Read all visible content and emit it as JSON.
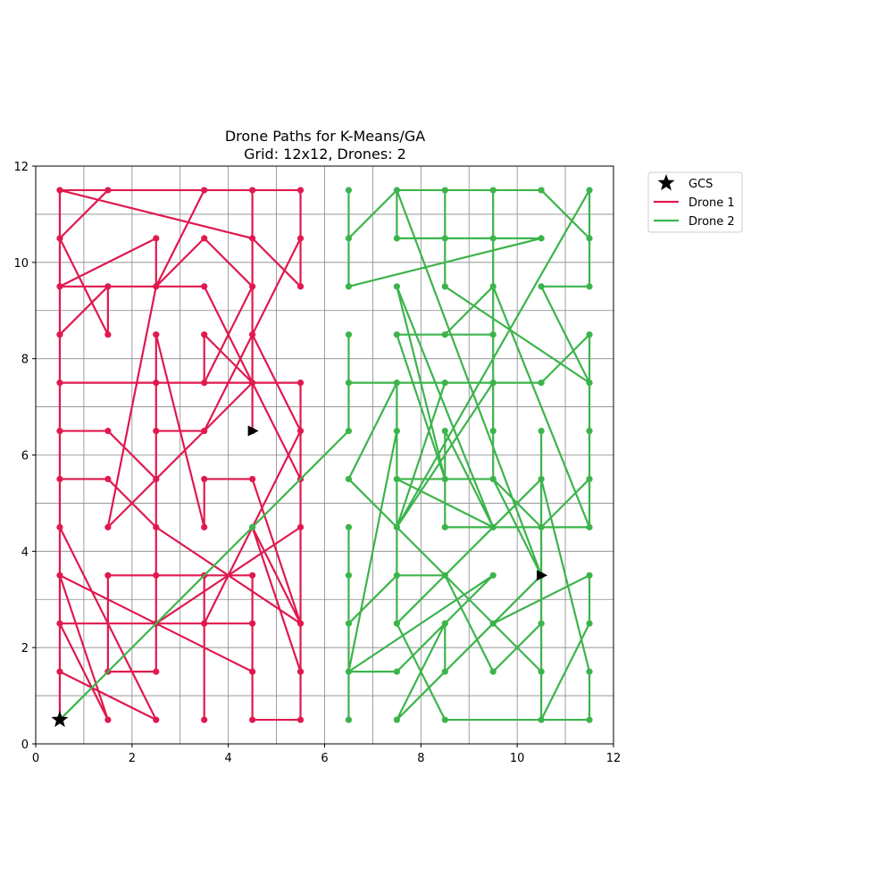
{
  "chart_data": {
    "type": "line",
    "title": "Drone Paths for K-Means/GA",
    "subtitle": "Grid: 12x12, Drones: 2",
    "xlabel": "",
    "ylabel": "",
    "xlim": [
      0,
      12
    ],
    "ylim": [
      0,
      12
    ],
    "xticks": [
      0,
      2,
      4,
      6,
      8,
      10,
      12
    ],
    "yticks": [
      0,
      2,
      4,
      6,
      8,
      10,
      12
    ],
    "grid": true,
    "minor_grid_step": 1,
    "legend_position": "outside upper-right",
    "gcs": {
      "label": "GCS",
      "x": 0.5,
      "y": 0.5,
      "marker": "star",
      "color": "#000000"
    },
    "series": [
      {
        "name": "Drone 1",
        "color": "#e0194f",
        "end_marker": {
          "x": 4.5,
          "y": 6.5,
          "shape": "triangle-right",
          "color": "#000000"
        },
        "path": [
          [
            0.5,
            0.5
          ],
          [
            0.5,
            2.5
          ],
          [
            1.5,
            0.5
          ],
          [
            0.5,
            3.5
          ],
          [
            4.5,
            1.5
          ],
          [
            4.5,
            3.5
          ],
          [
            1.5,
            3.5
          ],
          [
            1.5,
            1.5
          ],
          [
            2.5,
            1.5
          ],
          [
            2.5,
            6.5
          ],
          [
            3.5,
            6.5
          ],
          [
            4.5,
            8.5
          ],
          [
            4.5,
            11.5
          ],
          [
            3.5,
            11.5
          ],
          [
            2.5,
            9.5
          ],
          [
            2.5,
            10.5
          ],
          [
            0.5,
            9.5
          ],
          [
            3.5,
            9.5
          ],
          [
            5.5,
            5.5
          ],
          [
            5.5,
            1.5
          ],
          [
            4.5,
            4.5
          ],
          [
            5.5,
            2.5
          ],
          [
            5.5,
            4.5
          ],
          [
            2.5,
            2.5
          ],
          [
            0.5,
            2.5
          ],
          [
            4.5,
            2.5
          ],
          [
            4.5,
            0.5
          ],
          [
            5.5,
            0.5
          ],
          [
            5.5,
            7.5
          ],
          [
            0.5,
            7.5
          ],
          [
            0.5,
            11.5
          ],
          [
            5.5,
            11.5
          ],
          [
            5.5,
            9.5
          ],
          [
            4.5,
            10.5
          ],
          [
            0.5,
            11.5
          ],
          [
            0.5,
            4.5
          ],
          [
            2.5,
            0.5
          ],
          [
            0.5,
            1.5
          ],
          [
            0.5,
            6.5
          ],
          [
            1.5,
            6.5
          ],
          [
            2.5,
            5.5
          ],
          [
            2.5,
            8.5
          ],
          [
            3.5,
            4.5
          ],
          [
            3.5,
            5.5
          ],
          [
            4.5,
            5.5
          ],
          [
            5.5,
            2.5
          ],
          [
            2.5,
            4.5
          ],
          [
            2.5,
            3.5
          ],
          [
            3.5,
            3.5
          ],
          [
            3.5,
            0.5
          ],
          [
            3.5,
            2.5
          ],
          [
            5.5,
            6.5
          ],
          [
            4.5,
            8.5
          ],
          [
            5.5,
            10.5
          ],
          [
            5.5,
            11.5
          ],
          [
            1.5,
            11.5
          ],
          [
            0.5,
            10.5
          ],
          [
            1.5,
            8.5
          ],
          [
            1.5,
            9.5
          ],
          [
            0.5,
            8.5
          ],
          [
            0.5,
            5.5
          ],
          [
            1.5,
            5.5
          ],
          [
            2.5,
            4.5
          ],
          [
            2.5,
            7.5
          ],
          [
            4.5,
            7.5
          ],
          [
            3.5,
            8.5
          ],
          [
            3.5,
            7.5
          ],
          [
            4.5,
            9.5
          ],
          [
            4.5,
            7.5
          ],
          [
            1.5,
            4.5
          ],
          [
            2.5,
            9.5
          ],
          [
            3.5,
            10.5
          ],
          [
            4.5,
            9.5
          ],
          [
            4.5,
            6.5
          ]
        ]
      },
      {
        "name": "Drone 2",
        "color": "#3cb44b",
        "end_marker": {
          "x": 10.5,
          "y": 3.5,
          "shape": "triangle-right",
          "color": "#000000"
        },
        "path": [
          [
            0.5,
            0.5
          ],
          [
            4.5,
            4.5
          ],
          [
            6.5,
            6.5
          ],
          [
            6.5,
            8.5
          ],
          [
            6.5,
            7.5
          ],
          [
            10.5,
            7.5
          ],
          [
            11.5,
            8.5
          ],
          [
            11.5,
            4.5
          ],
          [
            9.5,
            9.5
          ],
          [
            8.5,
            8.5
          ],
          [
            9.5,
            8.5
          ],
          [
            7.5,
            8.5
          ],
          [
            8.5,
            5.5
          ],
          [
            7.5,
            9.5
          ],
          [
            9.5,
            4.5
          ],
          [
            11.5,
            4.5
          ],
          [
            11.5,
            6.5
          ],
          [
            11.5,
            5.5
          ],
          [
            10.5,
            4.5
          ],
          [
            8.5,
            4.5
          ],
          [
            8.5,
            6.5
          ],
          [
            9.5,
            4.5
          ],
          [
            7.5,
            5.5
          ],
          [
            9.5,
            5.5
          ],
          [
            10.5,
            4.5
          ],
          [
            10.5,
            6.5
          ],
          [
            10.5,
            0.5
          ],
          [
            11.5,
            2.5
          ],
          [
            11.5,
            3.5
          ],
          [
            9.5,
            2.5
          ],
          [
            8.5,
            1.5
          ],
          [
            8.5,
            2.5
          ],
          [
            9.5,
            3.5
          ],
          [
            6.5,
            1.5
          ],
          [
            6.5,
            0.5
          ],
          [
            6.5,
            4.5
          ],
          [
            6.5,
            3.5
          ],
          [
            6.5,
            2.5
          ],
          [
            7.5,
            3.5
          ],
          [
            8.5,
            3.5
          ],
          [
            9.5,
            1.5
          ],
          [
            10.5,
            2.5
          ],
          [
            10.5,
            1.5
          ],
          [
            7.5,
            4.5
          ],
          [
            6.5,
            5.5
          ],
          [
            7.5,
            7.5
          ],
          [
            7.5,
            4.5
          ],
          [
            9.5,
            7.5
          ],
          [
            9.5,
            6.5
          ],
          [
            9.5,
            10.5
          ],
          [
            8.5,
            10.5
          ],
          [
            8.5,
            11.5
          ],
          [
            8.5,
            9.5
          ],
          [
            11.5,
            7.5
          ],
          [
            10.5,
            9.5
          ],
          [
            11.5,
            9.5
          ],
          [
            11.5,
            11.5
          ],
          [
            7.5,
            4.5
          ],
          [
            8.5,
            7.5
          ],
          [
            7.5,
            4.5
          ],
          [
            7.5,
            2.5
          ],
          [
            10.5,
            5.5
          ],
          [
            11.5,
            1.5
          ],
          [
            11.5,
            0.5
          ],
          [
            8.5,
            0.5
          ],
          [
            7.5,
            2.5
          ],
          [
            7.5,
            6.5
          ],
          [
            6.5,
            1.5
          ],
          [
            7.5,
            1.5
          ],
          [
            8.5,
            2.5
          ],
          [
            7.5,
            0.5
          ],
          [
            10.5,
            3.5
          ],
          [
            9.5,
            5.5
          ],
          [
            9.5,
            11.5
          ],
          [
            10.5,
            11.5
          ],
          [
            11.5,
            10.5
          ],
          [
            10.5,
            11.5
          ],
          [
            7.5,
            11.5
          ],
          [
            7.5,
            10.5
          ],
          [
            10.5,
            10.5
          ],
          [
            6.5,
            9.5
          ],
          [
            6.5,
            11.5
          ],
          [
            6.5,
            10.5
          ],
          [
            7.5,
            11.5
          ],
          [
            10.5,
            3.5
          ]
        ]
      }
    ]
  }
}
